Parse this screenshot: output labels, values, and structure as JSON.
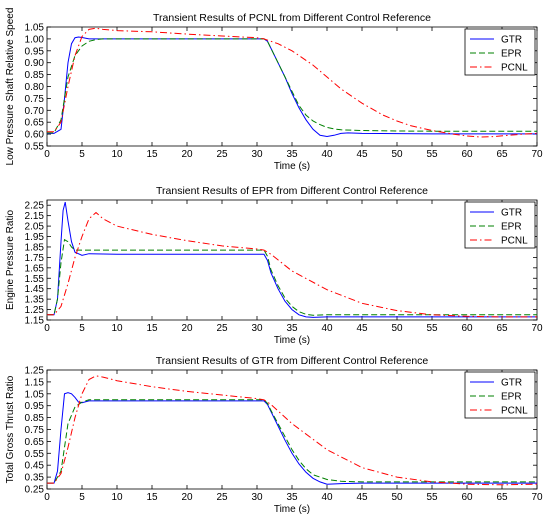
{
  "chart_data": [
    {
      "type": "line",
      "title": "Transient Results of PCNL from Different Control Reference",
      "xlabel": "Time (s)",
      "ylabel": "Low Pressure Shaft Relative Speed",
      "xlim": [
        0,
        70
      ],
      "ylim": [
        0.55,
        1.05
      ],
      "xticks": [
        "0",
        "5",
        "10",
        "15",
        "20",
        "25",
        "30",
        "35",
        "40",
        "45",
        "50",
        "55",
        "60",
        "65",
        "70"
      ],
      "yticks": [
        "0.55",
        "0.60",
        "0.65",
        "0.70",
        "0.75",
        "0.80",
        "0.85",
        "0.90",
        "0.95",
        "1.00",
        "1.05"
      ],
      "grid": false,
      "legend": "top-right",
      "series": [
        {
          "name": "GTR",
          "color": "#0000ff",
          "dash": "solid",
          "x": [
            0,
            1,
            2,
            2.5,
            3,
            3.5,
            4,
            4.5,
            5,
            6,
            7,
            10,
            15,
            20,
            25,
            31,
            31.5,
            32,
            33,
            34,
            35,
            36,
            37,
            38,
            39,
            40,
            41,
            42,
            43,
            45,
            50,
            55,
            60,
            65,
            70
          ],
          "y": [
            0.603,
            0.603,
            0.62,
            0.75,
            0.9,
            0.98,
            1.005,
            1.008,
            1.006,
            1.0,
            1.0,
            1.0,
            1.0,
            1.0,
            1.0,
            1.0,
            0.99,
            0.96,
            0.9,
            0.84,
            0.77,
            0.71,
            0.66,
            0.62,
            0.595,
            0.59,
            0.595,
            0.603,
            0.605,
            0.603,
            0.602,
            0.601,
            0.601,
            0.601,
            0.601
          ]
        },
        {
          "name": "EPR",
          "color": "#008000",
          "dash": "6,3",
          "x": [
            0,
            1,
            2,
            3,
            4,
            5,
            6,
            7,
            8,
            10,
            15,
            20,
            25,
            31,
            31.5,
            32,
            33,
            34,
            35,
            36,
            37,
            38,
            39,
            40,
            41,
            42,
            45,
            50,
            55,
            60,
            65,
            70
          ],
          "y": [
            0.605,
            0.605,
            0.66,
            0.84,
            0.93,
            0.97,
            0.99,
            0.997,
            1.0,
            1.0,
            1.0,
            1.0,
            1.0,
            1.0,
            0.99,
            0.96,
            0.9,
            0.84,
            0.78,
            0.72,
            0.68,
            0.655,
            0.64,
            0.628,
            0.622,
            0.618,
            0.615,
            0.613,
            0.612,
            0.612,
            0.612,
            0.612
          ]
        },
        {
          "name": "PCNL",
          "color": "#ff0000",
          "dash": "7,3,1.5,3",
          "x": [
            0,
            1,
            2,
            3,
            4,
            5,
            6,
            7,
            8,
            10,
            15,
            20,
            25,
            30,
            31,
            32,
            33,
            35,
            38,
            40,
            42,
            45,
            48,
            50,
            52,
            55,
            58,
            60,
            62,
            64,
            66,
            68,
            70
          ],
          "y": [
            0.61,
            0.61,
            0.65,
            0.8,
            0.93,
            1.01,
            1.04,
            1.045,
            1.04,
            1.035,
            1.03,
            1.02,
            1.012,
            1.005,
            1.0,
            0.99,
            0.98,
            0.95,
            0.89,
            0.84,
            0.79,
            0.73,
            0.68,
            0.655,
            0.635,
            0.615,
            0.6,
            0.592,
            0.588,
            0.59,
            0.595,
            0.6,
            0.603
          ]
        }
      ]
    },
    {
      "type": "line",
      "title": "Transient Results of EPR from Different Control Reference",
      "xlabel": "Time (s)",
      "ylabel": "Engine Pressure Ratio",
      "xlim": [
        0,
        70
      ],
      "ylim": [
        1.15,
        2.3
      ],
      "xticks": [
        "0",
        "5",
        "10",
        "15",
        "20",
        "25",
        "30",
        "35",
        "40",
        "45",
        "50",
        "55",
        "60",
        "65",
        "70"
      ],
      "yticks": [
        "1.15",
        "1.25",
        "1.35",
        "1.45",
        "1.55",
        "1.65",
        "1.75",
        "1.85",
        "1.95",
        "2.05",
        "2.15",
        "2.25"
      ],
      "grid": false,
      "legend": "top-right",
      "series": [
        {
          "name": "GTR",
          "color": "#0000ff",
          "dash": "solid",
          "x": [
            0,
            1,
            1.5,
            2,
            2.3,
            2.6,
            3,
            3.5,
            4,
            5,
            6,
            10,
            20,
            31,
            31.5,
            32,
            33,
            34,
            35,
            36,
            37,
            38,
            40,
            45,
            50,
            60,
            70
          ],
          "y": [
            1.2,
            1.2,
            1.35,
            1.9,
            2.2,
            2.28,
            2.1,
            1.9,
            1.8,
            1.77,
            1.785,
            1.78,
            1.78,
            1.78,
            1.72,
            1.6,
            1.45,
            1.33,
            1.25,
            1.2,
            1.18,
            1.175,
            1.18,
            1.18,
            1.18,
            1.18,
            1.18
          ]
        },
        {
          "name": "EPR",
          "color": "#008000",
          "dash": "6,3",
          "x": [
            0,
            1,
            1.5,
            2,
            2.5,
            3,
            3.5,
            4,
            5,
            6,
            10,
            20,
            31,
            31.5,
            32,
            33,
            34,
            35,
            36,
            37,
            38,
            40,
            45,
            50,
            60,
            70
          ],
          "y": [
            1.2,
            1.2,
            1.35,
            1.7,
            1.92,
            1.9,
            1.85,
            1.82,
            1.82,
            1.82,
            1.82,
            1.82,
            1.82,
            1.76,
            1.63,
            1.48,
            1.36,
            1.28,
            1.23,
            1.205,
            1.195,
            1.2,
            1.2,
            1.2,
            1.2,
            1.2
          ]
        },
        {
          "name": "PCNL",
          "color": "#ff0000",
          "dash": "7,3,1.5,3",
          "x": [
            0,
            1,
            2,
            3,
            4,
            5,
            6,
            7,
            8,
            10,
            15,
            20,
            25,
            30,
            31,
            32,
            35,
            40,
            45,
            50,
            55,
            60,
            65,
            70
          ],
          "y": [
            1.2,
            1.2,
            1.28,
            1.5,
            1.75,
            1.95,
            2.12,
            2.18,
            2.12,
            2.05,
            1.97,
            1.91,
            1.86,
            1.83,
            1.82,
            1.78,
            1.62,
            1.44,
            1.31,
            1.24,
            1.2,
            1.185,
            1.18,
            1.18
          ]
        }
      ]
    },
    {
      "type": "line",
      "title": "Transient Results of GTR from Different Control Reference",
      "xlabel": "Time (s)",
      "ylabel": "Total Gross Thrust Ratio",
      "xlim": [
        0,
        70
      ],
      "ylim": [
        0.25,
        1.25
      ],
      "xticks": [
        "0",
        "5",
        "10",
        "15",
        "20",
        "25",
        "30",
        "35",
        "40",
        "45",
        "50",
        "55",
        "60",
        "65",
        "70"
      ],
      "yticks": [
        "0.25",
        "0.35",
        "0.45",
        "0.55",
        "0.65",
        "0.75",
        "0.85",
        "0.95",
        "1.05",
        "1.15",
        "1.25"
      ],
      "grid": false,
      "legend": "top-right",
      "series": [
        {
          "name": "GTR",
          "color": "#0000ff",
          "dash": "solid",
          "x": [
            0,
            1,
            1.5,
            2,
            2.5,
            3,
            3.5,
            4,
            4.5,
            5,
            6,
            10,
            20,
            31,
            31.5,
            32,
            33,
            34,
            35,
            36,
            37,
            38,
            39,
            40,
            42,
            45,
            50,
            60,
            70
          ],
          "y": [
            0.3,
            0.3,
            0.4,
            0.75,
            1.05,
            1.06,
            1.05,
            1.02,
            0.98,
            0.975,
            0.99,
            0.99,
            0.99,
            0.99,
            0.96,
            0.9,
            0.78,
            0.66,
            0.55,
            0.46,
            0.39,
            0.34,
            0.31,
            0.29,
            0.295,
            0.3,
            0.3,
            0.3,
            0.3
          ]
        },
        {
          "name": "EPR",
          "color": "#008000",
          "dash": "6,3",
          "x": [
            0,
            1,
            2,
            3,
            4,
            5,
            6,
            7,
            10,
            20,
            31,
            31.5,
            32,
            33,
            34,
            35,
            36,
            37,
            38,
            40,
            42,
            45,
            50,
            60,
            70
          ],
          "y": [
            0.3,
            0.3,
            0.4,
            0.8,
            0.94,
            0.98,
            1.0,
            1.0,
            1.0,
            1.0,
            1.0,
            0.97,
            0.91,
            0.8,
            0.69,
            0.58,
            0.49,
            0.42,
            0.37,
            0.33,
            0.315,
            0.31,
            0.31,
            0.31,
            0.31
          ]
        },
        {
          "name": "PCNL",
          "color": "#ff0000",
          "dash": "7,3,1.5,3",
          "x": [
            0,
            1,
            2,
            3,
            4,
            5,
            6,
            7,
            8,
            10,
            15,
            20,
            25,
            30,
            31,
            32,
            35,
            40,
            45,
            50,
            55,
            60,
            65,
            70
          ],
          "y": [
            0.3,
            0.3,
            0.38,
            0.6,
            0.85,
            1.05,
            1.17,
            1.2,
            1.19,
            1.16,
            1.11,
            1.07,
            1.04,
            1.01,
            1.0,
            0.96,
            0.8,
            0.58,
            0.43,
            0.35,
            0.31,
            0.29,
            0.285,
            0.29
          ]
        }
      ]
    }
  ]
}
